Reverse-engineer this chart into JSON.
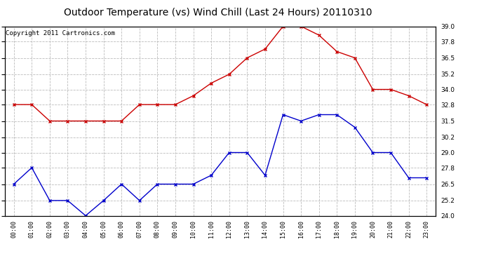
{
  "title": "Outdoor Temperature (vs) Wind Chill (Last 24 Hours) 20110310",
  "copyright": "Copyright 2011 Cartronics.com",
  "x_labels": [
    "00:00",
    "01:00",
    "02:00",
    "03:00",
    "04:00",
    "05:00",
    "06:00",
    "07:00",
    "08:00",
    "09:00",
    "10:00",
    "11:00",
    "12:00",
    "13:00",
    "14:00",
    "15:00",
    "16:00",
    "17:00",
    "18:00",
    "19:00",
    "20:00",
    "21:00",
    "22:00",
    "23:00"
  ],
  "temp_red": [
    32.8,
    32.8,
    31.5,
    31.5,
    31.5,
    31.5,
    31.5,
    32.8,
    32.8,
    32.8,
    33.5,
    34.5,
    35.2,
    36.5,
    37.2,
    39.0,
    39.0,
    38.3,
    37.0,
    36.5,
    34.0,
    34.0,
    33.5,
    32.8
  ],
  "wind_blue": [
    26.5,
    27.8,
    25.2,
    25.2,
    24.0,
    25.2,
    26.5,
    25.2,
    26.5,
    26.5,
    26.5,
    27.2,
    29.0,
    29.0,
    27.2,
    32.0,
    31.5,
    32.0,
    32.0,
    31.0,
    29.0,
    29.0,
    27.0,
    27.0
  ],
  "ylim": [
    24.0,
    39.0
  ],
  "yticks": [
    24.0,
    25.2,
    26.5,
    27.8,
    29.0,
    30.2,
    31.5,
    32.8,
    34.0,
    35.2,
    36.5,
    37.8,
    39.0
  ],
  "bg_color": "#ffffff",
  "plot_bg_color": "#ffffff",
  "grid_color": "#bbbbbb",
  "red_color": "#cc0000",
  "blue_color": "#0000cc",
  "title_fontsize": 10,
  "copyright_fontsize": 6.5
}
